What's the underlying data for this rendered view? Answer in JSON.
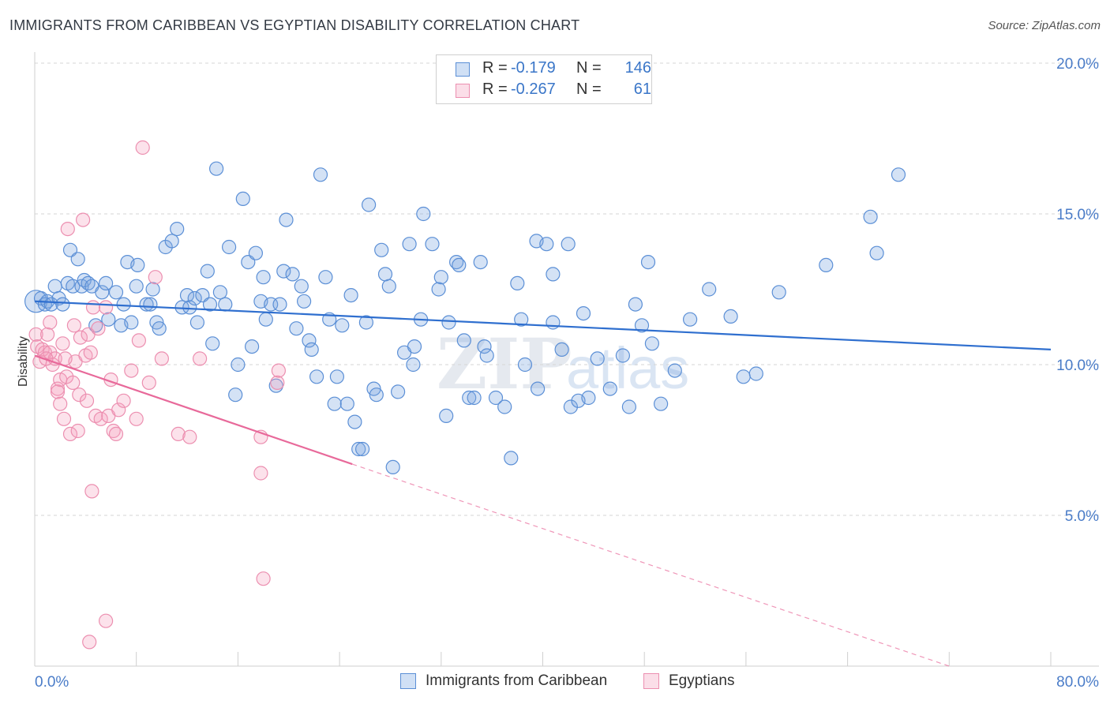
{
  "title": "IMMIGRANTS FROM CARIBBEAN VS EGYPTIAN DISABILITY CORRELATION CHART",
  "source": "Source: ZipAtlas.com",
  "watermark": {
    "zip": "ZIP",
    "atlas": "atlas"
  },
  "colors": {
    "blue": "#5b8fd6",
    "blue_line": "#2f6fcf",
    "pink": "#ec8fb0",
    "pink_line": "#e8699a",
    "tick": "#4a7cc8"
  },
  "legend_top": {
    "rows": [
      {
        "r_label": "R =",
        "r_value": "-0.179",
        "n_label": "N =",
        "n_value": "146",
        "color": "blue"
      },
      {
        "r_label": "R =",
        "r_value": "-0.267",
        "n_label": "N =",
        "n_value": "61",
        "color": "pink"
      }
    ]
  },
  "legend_bottom": [
    {
      "label": "Immigrants from Caribbean",
      "color": "blue"
    },
    {
      "label": "Egyptians",
      "color": "pink"
    }
  ],
  "chart_data": {
    "type": "scatter",
    "title": "IMMIGRANTS FROM CARIBBEAN VS EGYPTIAN DISABILITY CORRELATION CHART",
    "xlabel": "",
    "ylabel": "Disability",
    "xlim": [
      0,
      80
    ],
    "ylim": [
      0,
      20
    ],
    "x_tick_labels": [
      {
        "value": 0,
        "label": "0.0%"
      },
      {
        "value": 80,
        "label": "80.0%"
      }
    ],
    "y_tick_labels": [
      {
        "value": 5,
        "label": "5.0%"
      },
      {
        "value": 10,
        "label": "10.0%"
      },
      {
        "value": 15,
        "label": "15.0%"
      },
      {
        "value": 20,
        "label": "20.0%"
      }
    ],
    "grid": true,
    "series": [
      {
        "name": "Immigrants from Caribbean",
        "color": "blue",
        "trend": {
          "x0": 0,
          "y0": 12.1,
          "x1": 80,
          "y1": 10.5,
          "dash_from": null
        },
        "points": [
          [
            0.1,
            12.1
          ],
          [
            0.5,
            12.2
          ],
          [
            0.8,
            12.0
          ],
          [
            1.0,
            12.1
          ],
          [
            1.3,
            12.0
          ],
          [
            1.6,
            12.6
          ],
          [
            1.9,
            12.2
          ],
          [
            2.2,
            12.0
          ],
          [
            2.6,
            12.7
          ],
          [
            2.8,
            13.8
          ],
          [
            3.0,
            12.6
          ],
          [
            3.4,
            13.5
          ],
          [
            3.7,
            12.6
          ],
          [
            3.9,
            12.8
          ],
          [
            4.2,
            12.7
          ],
          [
            4.5,
            12.6
          ],
          [
            4.8,
            11.3
          ],
          [
            5.3,
            12.4
          ],
          [
            5.6,
            12.7
          ],
          [
            5.8,
            11.5
          ],
          [
            6.4,
            12.4
          ],
          [
            6.8,
            11.3
          ],
          [
            7.0,
            12.0
          ],
          [
            7.6,
            11.4
          ],
          [
            7.3,
            13.4
          ],
          [
            8.1,
            13.3
          ],
          [
            8.0,
            12.6
          ],
          [
            8.8,
            12.0
          ],
          [
            9.1,
            12.0
          ],
          [
            9.3,
            12.5
          ],
          [
            9.6,
            11.4
          ],
          [
            9.8,
            11.2
          ],
          [
            10.3,
            13.9
          ],
          [
            10.8,
            14.1
          ],
          [
            11.2,
            14.5
          ],
          [
            11.6,
            11.9
          ],
          [
            12.0,
            12.3
          ],
          [
            12.2,
            11.9
          ],
          [
            12.6,
            12.2
          ],
          [
            12.8,
            11.4
          ],
          [
            13.2,
            12.3
          ],
          [
            13.6,
            13.1
          ],
          [
            13.8,
            12.0
          ],
          [
            14.0,
            10.7
          ],
          [
            14.3,
            16.5
          ],
          [
            14.6,
            12.4
          ],
          [
            15.0,
            12.0
          ],
          [
            15.3,
            13.9
          ],
          [
            15.8,
            9.0
          ],
          [
            16.0,
            10.0
          ],
          [
            16.4,
            15.5
          ],
          [
            16.8,
            13.4
          ],
          [
            17.1,
            10.6
          ],
          [
            17.4,
            13.7
          ],
          [
            17.8,
            12.1
          ],
          [
            18.0,
            12.9
          ],
          [
            18.2,
            11.5
          ],
          [
            18.6,
            12.0
          ],
          [
            19.0,
            9.3
          ],
          [
            19.3,
            12.0
          ],
          [
            19.6,
            13.1
          ],
          [
            19.8,
            14.8
          ],
          [
            20.3,
            13.0
          ],
          [
            20.6,
            11.2
          ],
          [
            21.0,
            12.6
          ],
          [
            21.2,
            12.1
          ],
          [
            21.6,
            10.8
          ],
          [
            21.8,
            10.5
          ],
          [
            22.2,
            9.6
          ],
          [
            22.5,
            16.3
          ],
          [
            22.9,
            12.9
          ],
          [
            23.2,
            11.5
          ],
          [
            23.6,
            8.7
          ],
          [
            23.8,
            9.6
          ],
          [
            24.2,
            11.3
          ],
          [
            24.6,
            8.7
          ],
          [
            24.9,
            12.3
          ],
          [
            25.2,
            8.1
          ],
          [
            25.5,
            7.2
          ],
          [
            25.8,
            7.2
          ],
          [
            26.1,
            11.4
          ],
          [
            26.3,
            15.3
          ],
          [
            26.7,
            9.2
          ],
          [
            26.9,
            9.0
          ],
          [
            27.3,
            13.8
          ],
          [
            27.6,
            13.0
          ],
          [
            27.9,
            12.6
          ],
          [
            28.2,
            6.6
          ],
          [
            28.6,
            9.1
          ],
          [
            29.1,
            10.4
          ],
          [
            29.5,
            14.0
          ],
          [
            29.8,
            10.0
          ],
          [
            29.9,
            10.6
          ],
          [
            30.4,
            11.5
          ],
          [
            30.6,
            15.0
          ],
          [
            31.3,
            14.0
          ],
          [
            31.8,
            12.5
          ],
          [
            32.0,
            12.9
          ],
          [
            32.4,
            8.3
          ],
          [
            32.6,
            11.4
          ],
          [
            33.2,
            13.4
          ],
          [
            33.4,
            13.3
          ],
          [
            33.8,
            10.8
          ],
          [
            34.2,
            8.9
          ],
          [
            34.6,
            8.9
          ],
          [
            35.1,
            13.4
          ],
          [
            35.4,
            10.6
          ],
          [
            35.6,
            10.3
          ],
          [
            36.3,
            8.9
          ],
          [
            37.0,
            8.6
          ],
          [
            37.5,
            6.9
          ],
          [
            38.0,
            12.7
          ],
          [
            38.3,
            11.5
          ],
          [
            38.6,
            10.0
          ],
          [
            39.5,
            14.1
          ],
          [
            39.6,
            9.2
          ],
          [
            40.3,
            14.0
          ],
          [
            40.8,
            13.0
          ],
          [
            40.8,
            11.4
          ],
          [
            41.5,
            10.5
          ],
          [
            42.0,
            14.0
          ],
          [
            42.2,
            8.6
          ],
          [
            42.8,
            8.8
          ],
          [
            43.2,
            11.7
          ],
          [
            43.6,
            8.9
          ],
          [
            44.3,
            10.2
          ],
          [
            45.3,
            9.2
          ],
          [
            46.3,
            10.3
          ],
          [
            46.8,
            8.6
          ],
          [
            47.3,
            12.0
          ],
          [
            47.8,
            11.3
          ],
          [
            48.3,
            13.4
          ],
          [
            48.6,
            10.7
          ],
          [
            49.3,
            8.7
          ],
          [
            50.4,
            9.8
          ],
          [
            51.6,
            11.5
          ],
          [
            53.1,
            12.5
          ],
          [
            54.8,
            11.6
          ],
          [
            55.8,
            9.6
          ],
          [
            56.8,
            9.7
          ],
          [
            58.6,
            12.4
          ],
          [
            62.3,
            13.3
          ],
          [
            65.8,
            14.9
          ],
          [
            66.3,
            13.7
          ],
          [
            68.0,
            16.3
          ]
        ]
      },
      {
        "name": "Egyptians",
        "color": "pink",
        "trend": {
          "x0": 0,
          "y0": 10.3,
          "x1": 25,
          "y1": 6.7,
          "dash_from": 25,
          "dash_to_x": 72,
          "dash_to_y": 0.0
        },
        "points": [
          [
            0.1,
            11.0
          ],
          [
            0.2,
            10.6
          ],
          [
            0.4,
            10.1
          ],
          [
            0.6,
            10.5
          ],
          [
            0.8,
            10.4
          ],
          [
            1.0,
            11.0
          ],
          [
            1.2,
            10.4
          ],
          [
            1.4,
            10.0
          ],
          [
            1.6,
            10.2
          ],
          [
            1.8,
            9.2
          ],
          [
            2.0,
            9.5
          ],
          [
            1.8,
            9.1
          ],
          [
            2.0,
            8.7
          ],
          [
            2.2,
            10.7
          ],
          [
            2.3,
            8.2
          ],
          [
            2.5,
            9.6
          ],
          [
            2.6,
            14.5
          ],
          [
            2.8,
            7.7
          ],
          [
            3.0,
            9.4
          ],
          [
            3.1,
            11.3
          ],
          [
            3.2,
            10.1
          ],
          [
            3.4,
            7.8
          ],
          [
            3.5,
            9.0
          ],
          [
            3.6,
            10.9
          ],
          [
            3.8,
            14.8
          ],
          [
            4.0,
            10.3
          ],
          [
            4.1,
            8.8
          ],
          [
            4.2,
            11.0
          ],
          [
            4.4,
            10.4
          ],
          [
            4.6,
            11.9
          ],
          [
            4.5,
            5.8
          ],
          [
            4.8,
            8.3
          ],
          [
            5.0,
            11.2
          ],
          [
            5.2,
            8.2
          ],
          [
            5.6,
            11.9
          ],
          [
            5.8,
            8.3
          ],
          [
            6.0,
            9.5
          ],
          [
            6.2,
            7.8
          ],
          [
            6.4,
            7.7
          ],
          [
            6.6,
            8.5
          ],
          [
            7.0,
            8.8
          ],
          [
            7.6,
            9.8
          ],
          [
            8.0,
            8.2
          ],
          [
            8.2,
            10.8
          ],
          [
            8.5,
            17.2
          ],
          [
            9.0,
            9.4
          ],
          [
            9.5,
            12.9
          ],
          [
            10.0,
            10.2
          ],
          [
            11.3,
            7.7
          ],
          [
            12.2,
            7.6
          ],
          [
            13.0,
            10.2
          ],
          [
            17.8,
            7.6
          ],
          [
            17.8,
            6.4
          ],
          [
            19.1,
            9.4
          ],
          [
            18.0,
            2.9
          ],
          [
            19.2,
            9.8
          ],
          [
            5.6,
            1.5
          ],
          [
            4.3,
            0.8
          ],
          [
            1.2,
            11.4
          ],
          [
            0.9,
            10.2
          ],
          [
            2.4,
            10.2
          ]
        ]
      }
    ]
  }
}
